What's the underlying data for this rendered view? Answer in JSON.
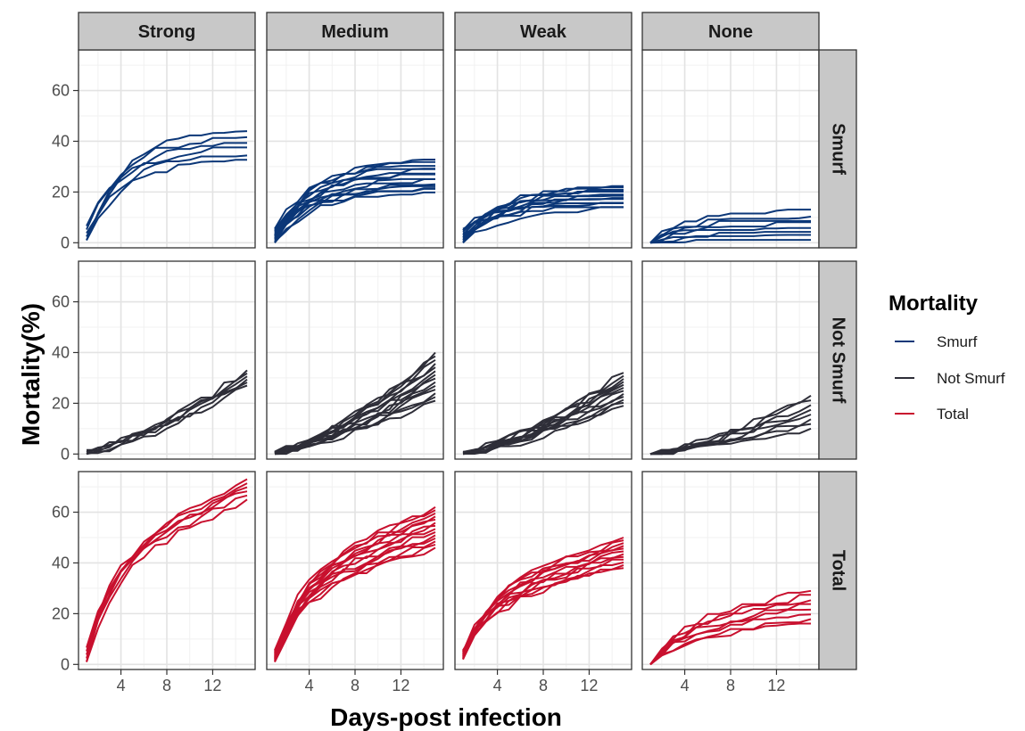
{
  "chart_data": {
    "type": "line",
    "title": "",
    "xlabel": "Days-post infection",
    "ylabel": "Mortality(%)",
    "xlim": [
      0.3,
      15.7
    ],
    "ylim": [
      -2,
      76
    ],
    "x_ticks": [
      4,
      8,
      12
    ],
    "y_ticks": [
      0,
      20,
      40,
      60
    ],
    "grid": true,
    "legend": {
      "title": "Mortality",
      "position": "right",
      "entries": [
        {
          "label": "Smurf",
          "color": "#0b3778"
        },
        {
          "label": "Not Smurf",
          "color": "#2e2e38"
        },
        {
          "label": "Total",
          "color": "#c8102e"
        }
      ]
    },
    "columns": [
      "Strong",
      "Medium",
      "Weak",
      "None"
    ],
    "rows": [
      "Smurf",
      "Not Smurf",
      "Total"
    ],
    "days": [
      1,
      2,
      3,
      4,
      5,
      6,
      7,
      8,
      9,
      10,
      11,
      12,
      13,
      14,
      15
    ],
    "panels": [
      {
        "row": "Smurf",
        "column": "Strong",
        "n_lines": 6,
        "start": [
          1,
          8
        ],
        "end": [
          32,
          44
        ]
      },
      {
        "row": "Smurf",
        "column": "Medium",
        "n_lines": 14,
        "start": [
          0,
          6
        ],
        "end": [
          19,
          32
        ]
      },
      {
        "row": "Smurf",
        "column": "Weak",
        "n_lines": 12,
        "start": [
          0,
          6
        ],
        "end": [
          13,
          22
        ]
      },
      {
        "row": "Smurf",
        "column": "None",
        "n_lines": 8,
        "start": [
          0,
          2
        ],
        "end": [
          0,
          12
        ]
      },
      {
        "row": "Not Smurf",
        "column": "Strong",
        "n_lines": 6,
        "start": [
          0,
          2
        ],
        "end": [
          27,
          33
        ]
      },
      {
        "row": "Not Smurf",
        "column": "Medium",
        "n_lines": 14,
        "start": [
          0,
          1
        ],
        "end": [
          21,
          40
        ]
      },
      {
        "row": "Not Smurf",
        "column": "Weak",
        "n_lines": 12,
        "start": [
          0,
          1
        ],
        "end": [
          19,
          32
        ]
      },
      {
        "row": "Not Smurf",
        "column": "None",
        "n_lines": 8,
        "start": [
          0,
          1
        ],
        "end": [
          10,
          23
        ]
      },
      {
        "row": "Total",
        "column": "Strong",
        "n_lines": 6,
        "start": [
          1,
          8
        ],
        "end": [
          65,
          73
        ]
      },
      {
        "row": "Total",
        "column": "Medium",
        "n_lines": 14,
        "start": [
          1,
          6
        ],
        "end": [
          46,
          62
        ]
      },
      {
        "row": "Total",
        "column": "Weak",
        "n_lines": 12,
        "start": [
          2,
          6
        ],
        "end": [
          38,
          50
        ]
      },
      {
        "row": "Total",
        "column": "None",
        "n_lines": 8,
        "start": [
          0,
          2
        ],
        "end": [
          16,
          29
        ]
      }
    ]
  }
}
